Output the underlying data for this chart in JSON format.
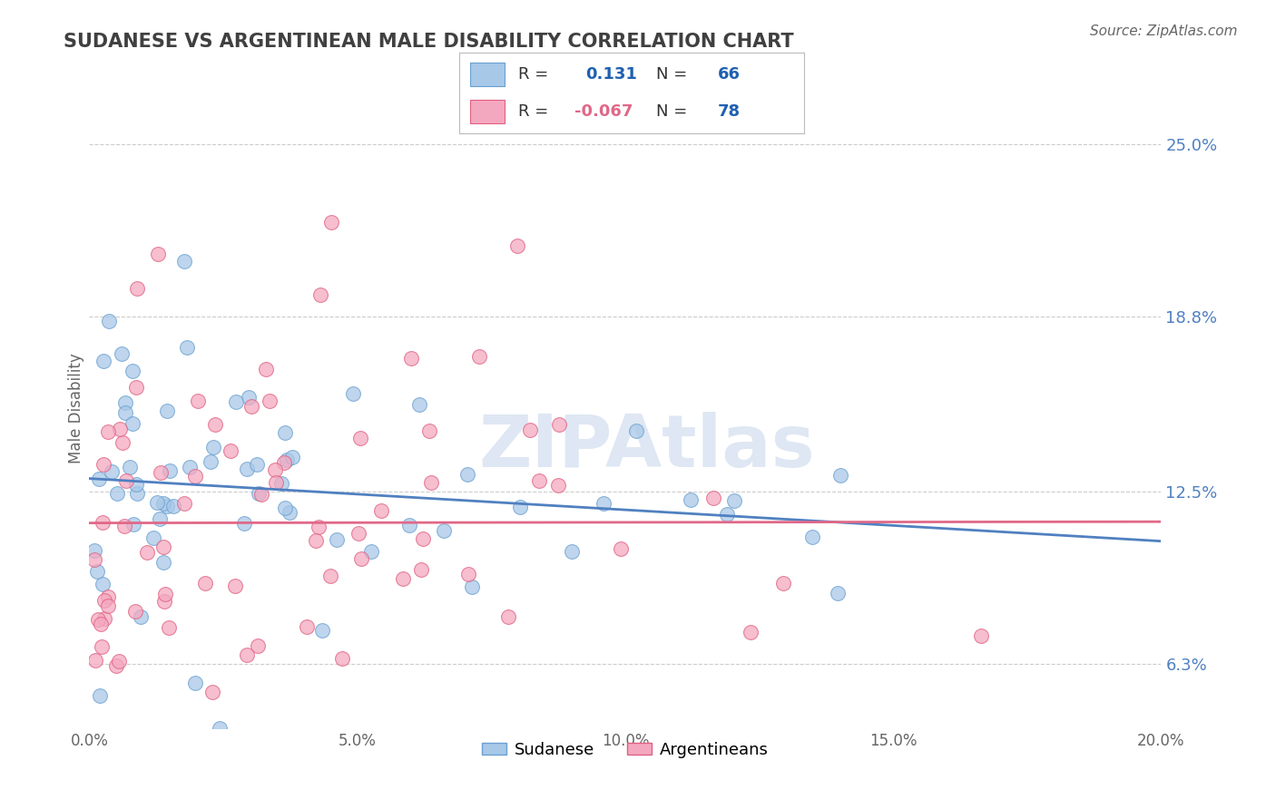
{
  "title": "SUDANESE VS ARGENTINEAN MALE DISABILITY CORRELATION CHART",
  "source_text": "Source: ZipAtlas.com",
  "ylabel": "Male Disability",
  "xlim": [
    0.0,
    0.2
  ],
  "ylim": [
    0.04,
    0.27
  ],
  "yticks": [
    0.063,
    0.125,
    0.188,
    0.25
  ],
  "ytick_labels": [
    "6.3%",
    "12.5%",
    "18.8%",
    "25.0%"
  ],
  "xticks": [
    0.0,
    0.05,
    0.1,
    0.15,
    0.2
  ],
  "xtick_labels": [
    "0.0%",
    "5.0%",
    "10.0%",
    "15.0%",
    "20.0%"
  ],
  "sudanese_R": 0.131,
  "sudanese_N": 66,
  "argentinean_R": -0.067,
  "argentinean_N": 78,
  "sudanese_color": "#A8C8E8",
  "argentinean_color": "#F4A8C0",
  "sudanese_edge_color": "#6AA0D0",
  "argentinean_edge_color": "#E06080",
  "sudanese_line_color": "#5080C0",
  "argentinean_line_color": "#E06888",
  "watermark_text": "ZIPAtlas",
  "watermark_color": "#C8D8EC",
  "background_color": "#FFFFFF",
  "grid_color": "#C0C0C0",
  "title_color": "#404040",
  "legend_R_color": "#2060B0",
  "legend_N_color": "#2060B0"
}
